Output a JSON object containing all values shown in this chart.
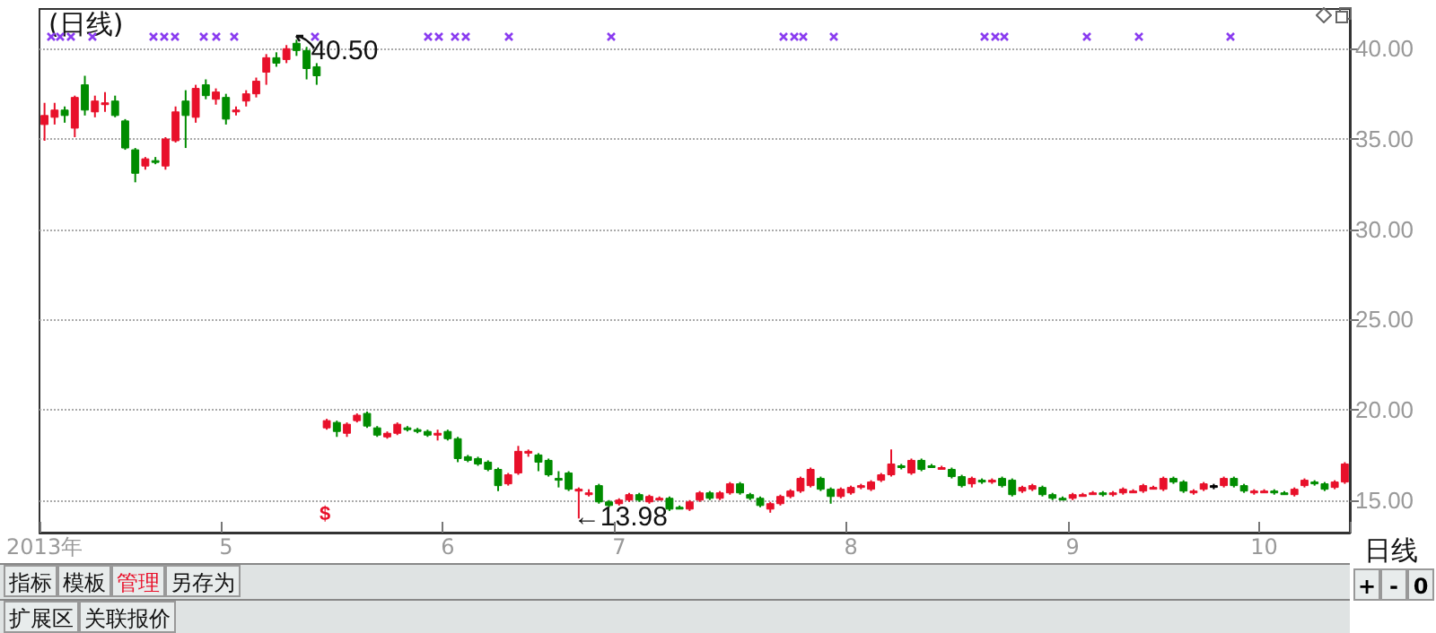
{
  "chart_data": {
    "type": "candlestick",
    "title": "(日线)",
    "categories": [
      "2013年",
      null,
      null,
      null,
      null,
      null,
      null,
      null,
      null,
      null,
      null,
      null,
      null,
      null,
      null,
      null,
      null,
      null,
      "5",
      null,
      null,
      null,
      null,
      null,
      null,
      null,
      null,
      null,
      null,
      null,
      null,
      null,
      null,
      null,
      null,
      null,
      null,
      null,
      null,
      null,
      "6",
      null,
      null,
      null,
      null,
      null,
      null,
      null,
      null,
      null,
      null,
      null,
      null,
      null,
      null,
      null,
      null,
      "7",
      null,
      null,
      null,
      null,
      null,
      null,
      null,
      null,
      null,
      null,
      null,
      null,
      null,
      null,
      null,
      null,
      null,
      null,
      null,
      null,
      null,
      null,
      "8",
      null,
      null,
      null,
      null,
      null,
      null,
      null,
      null,
      null,
      null,
      null,
      null,
      null,
      null,
      null,
      null,
      null,
      null,
      null,
      null,
      null,
      "9",
      null,
      null,
      null,
      null,
      null,
      null,
      null,
      null,
      null,
      null,
      null,
      null,
      null,
      null,
      null,
      null,
      null,
      null,
      "10",
      null,
      null,
      null,
      null,
      null,
      null,
      null,
      null
    ],
    "ohlc": [
      [
        35.8,
        37.0,
        34.9,
        36.3
      ],
      [
        36.2,
        37.0,
        35.8,
        36.6
      ],
      [
        36.6,
        36.8,
        35.9,
        36.3
      ],
      [
        35.6,
        37.4,
        35.1,
        37.3
      ],
      [
        38.0,
        38.5,
        36.3,
        36.6
      ],
      [
        36.5,
        37.4,
        36.2,
        37.1
      ],
      [
        37.0,
        37.6,
        36.5,
        37.0
      ],
      [
        37.1,
        37.4,
        36.2,
        36.3
      ],
      [
        36.0,
        36.1,
        34.4,
        34.5
      ],
      [
        34.4,
        34.5,
        32.6,
        33.1
      ],
      [
        33.5,
        34.0,
        33.3,
        33.9
      ],
      [
        33.8,
        34.0,
        33.6,
        33.8
      ],
      [
        33.5,
        35.1,
        33.3,
        35.0
      ],
      [
        34.9,
        36.8,
        34.8,
        36.5
      ],
      [
        37.1,
        37.7,
        34.5,
        36.3
      ],
      [
        36.2,
        38.0,
        35.9,
        37.8
      ],
      [
        38.0,
        38.3,
        37.2,
        37.4
      ],
      [
        37.2,
        37.8,
        36.9,
        37.6
      ],
      [
        37.3,
        37.5,
        35.8,
        36.1
      ],
      [
        36.5,
        36.8,
        36.3,
        36.6
      ],
      [
        37.1,
        37.7,
        36.8,
        37.5
      ],
      [
        37.5,
        38.4,
        37.3,
        38.2
      ],
      [
        38.7,
        39.7,
        38.0,
        39.5
      ],
      [
        39.5,
        39.8,
        39.0,
        39.2
      ],
      [
        39.4,
        40.2,
        39.2,
        40.0
      ],
      [
        40.3,
        40.5,
        39.6,
        39.9
      ],
      [
        39.9,
        40.1,
        38.3,
        38.9
      ],
      [
        39.0,
        39.2,
        38.0,
        38.5
      ],
      [
        19.0,
        19.5,
        18.9,
        19.4
      ],
      [
        19.3,
        19.4,
        18.5,
        18.8
      ],
      [
        18.7,
        19.3,
        18.5,
        19.2
      ],
      [
        19.4,
        19.8,
        19.3,
        19.7
      ],
      [
        19.8,
        19.9,
        19.0,
        19.1
      ],
      [
        19.0,
        19.1,
        18.5,
        18.6
      ],
      [
        18.5,
        18.8,
        18.4,
        18.7
      ],
      [
        18.7,
        19.3,
        18.6,
        19.2
      ],
      [
        19.0,
        19.1,
        18.8,
        19.0
      ],
      [
        18.9,
        19.0,
        18.7,
        18.9
      ],
      [
        18.8,
        18.9,
        18.5,
        18.6
      ],
      [
        18.6,
        18.9,
        18.3,
        18.7
      ],
      [
        18.8,
        18.9,
        18.3,
        18.4
      ],
      [
        18.4,
        18.5,
        17.1,
        17.3
      ],
      [
        17.4,
        17.5,
        17.1,
        17.2
      ],
      [
        17.3,
        17.4,
        16.9,
        17.0
      ],
      [
        17.1,
        17.2,
        16.6,
        16.7
      ],
      [
        16.7,
        16.8,
        15.5,
        15.8
      ],
      [
        15.9,
        16.5,
        15.8,
        16.4
      ],
      [
        16.5,
        18.0,
        16.4,
        17.7
      ],
      [
        17.6,
        17.8,
        17.4,
        17.7
      ],
      [
        17.5,
        17.6,
        16.6,
        17.1
      ],
      [
        17.2,
        17.3,
        16.3,
        16.4
      ],
      [
        16.2,
        16.6,
        15.7,
        16.2
      ],
      [
        16.5,
        16.6,
        15.5,
        15.6
      ],
      [
        15.5,
        15.7,
        13.98,
        15.6
      ],
      [
        15.3,
        15.6,
        15.2,
        15.4
      ],
      [
        15.8,
        15.9,
        14.8,
        14.9
      ],
      [
        14.9,
        15.0,
        14.6,
        14.7
      ],
      [
        14.8,
        15.1,
        14.7,
        15.0
      ],
      [
        15.0,
        15.4,
        14.9,
        15.3
      ],
      [
        15.3,
        15.4,
        14.9,
        15.0
      ],
      [
        14.9,
        15.3,
        14.8,
        15.2
      ],
      [
        15.1,
        15.2,
        15.0,
        15.1
      ],
      [
        15.1,
        15.2,
        14.4,
        14.5
      ],
      [
        14.6,
        14.7,
        14.5,
        14.6
      ],
      [
        14.5,
        15.0,
        14.4,
        14.9
      ],
      [
        15.0,
        15.5,
        14.9,
        15.4
      ],
      [
        15.4,
        15.5,
        15.0,
        15.1
      ],
      [
        15.1,
        15.5,
        15.0,
        15.4
      ],
      [
        15.4,
        16.0,
        15.3,
        15.9
      ],
      [
        15.9,
        16.0,
        15.3,
        15.4
      ],
      [
        15.3,
        15.4,
        15.0,
        15.1
      ],
      [
        15.1,
        15.2,
        14.6,
        14.7
      ],
      [
        14.5,
        14.9,
        14.3,
        14.8
      ],
      [
        14.8,
        15.3,
        14.7,
        15.2
      ],
      [
        15.2,
        15.6,
        15.1,
        15.5
      ],
      [
        15.5,
        16.3,
        15.4,
        16.2
      ],
      [
        15.8,
        16.8,
        15.7,
        16.7
      ],
      [
        16.2,
        16.3,
        15.5,
        15.6
      ],
      [
        15.6,
        15.7,
        14.8,
        15.2
      ],
      [
        15.2,
        15.7,
        15.1,
        15.6
      ],
      [
        15.4,
        15.8,
        15.3,
        15.7
      ],
      [
        15.8,
        15.9,
        15.6,
        15.8
      ],
      [
        15.6,
        16.1,
        15.5,
        16.0
      ],
      [
        16.1,
        16.5,
        16.0,
        16.4
      ],
      [
        16.4,
        17.8,
        16.3,
        17.0
      ],
      [
        16.9,
        17.0,
        16.7,
        16.8
      ],
      [
        16.5,
        17.3,
        16.4,
        17.2
      ],
      [
        17.2,
        17.3,
        16.6,
        16.7
      ],
      [
        16.9,
        17.0,
        16.8,
        16.9
      ],
      [
        16.8,
        16.9,
        16.7,
        16.8
      ],
      [
        16.7,
        16.8,
        16.2,
        16.3
      ],
      [
        16.3,
        16.4,
        15.7,
        15.8
      ],
      [
        15.9,
        16.3,
        15.7,
        16.2
      ],
      [
        16.1,
        16.2,
        15.9,
        16.0
      ],
      [
        16.0,
        16.2,
        15.9,
        16.1
      ],
      [
        16.2,
        16.3,
        15.7,
        15.8
      ],
      [
        16.1,
        16.2,
        15.2,
        15.3
      ],
      [
        15.5,
        15.8,
        15.4,
        15.7
      ],
      [
        15.6,
        15.9,
        15.5,
        15.8
      ],
      [
        15.7,
        15.8,
        15.2,
        15.3
      ],
      [
        15.3,
        15.4,
        15.0,
        15.1
      ],
      [
        15.1,
        15.2,
        15.0,
        15.1
      ],
      [
        15.1,
        15.4,
        15.0,
        15.3
      ],
      [
        15.3,
        15.4,
        15.2,
        15.3
      ],
      [
        15.4,
        15.5,
        15.3,
        15.4
      ],
      [
        15.4,
        15.5,
        15.2,
        15.3
      ],
      [
        15.3,
        15.5,
        15.2,
        15.4
      ],
      [
        15.4,
        15.7,
        15.3,
        15.6
      ],
      [
        15.5,
        15.6,
        15.4,
        15.5
      ],
      [
        15.5,
        15.9,
        15.4,
        15.8
      ],
      [
        15.7,
        15.8,
        15.6,
        15.7
      ],
      [
        15.6,
        16.3,
        15.5,
        16.2
      ],
      [
        16.2,
        16.3,
        15.9,
        16.0
      ],
      [
        16.0,
        16.1,
        15.4,
        15.5
      ],
      [
        15.4,
        15.6,
        15.3,
        15.5
      ],
      [
        15.6,
        16.0,
        15.5,
        15.9
      ],
      [
        15.8,
        15.9,
        15.6,
        15.8
      ],
      [
        15.8,
        16.3,
        15.7,
        16.2
      ],
      [
        16.2,
        16.3,
        15.7,
        15.8
      ],
      [
        15.8,
        15.9,
        15.4,
        15.5
      ],
      [
        15.4,
        15.6,
        15.3,
        15.5
      ],
      [
        15.5,
        15.6,
        15.4,
        15.5
      ],
      [
        15.5,
        15.6,
        15.3,
        15.4
      ],
      [
        15.4,
        15.5,
        15.3,
        15.3
      ],
      [
        15.3,
        15.7,
        15.2,
        15.6
      ],
      [
        15.8,
        16.2,
        15.7,
        16.1
      ],
      [
        16.0,
        16.1,
        15.8,
        15.9
      ],
      [
        15.9,
        16.0,
        15.5,
        15.6
      ],
      [
        15.7,
        16.1,
        15.6,
        16.0
      ],
      [
        16.0,
        17.1,
        15.9,
        17.0
      ]
    ],
    "colors": [
      "#e8102a",
      "#e8102a",
      "#008c00",
      "#e8102a",
      "#008c00",
      "#e8102a",
      "#e8102a",
      "#008c00",
      "#008c00",
      "#008c00",
      "#e8102a",
      "#008c00",
      "#e8102a",
      "#e8102a",
      "#008c00",
      "#e8102a",
      "#008c00",
      "#e8102a",
      "#008c00",
      "#e8102a",
      "#e8102a",
      "#e8102a",
      "#e8102a",
      "#008c00",
      "#e8102a",
      "#008c00",
      "#008c00",
      "#008c00",
      "#e8102a",
      "#008c00",
      "#e8102a",
      "#e8102a",
      "#008c00",
      "#008c00",
      "#e8102a",
      "#e8102a",
      "#008c00",
      "#008c00",
      "#008c00",
      "#e8102a",
      "#008c00",
      "#008c00",
      "#008c00",
      "#008c00",
      "#008c00",
      "#008c00",
      "#e8102a",
      "#e8102a",
      "#e8102a",
      "#008c00",
      "#008c00",
      "#008c00",
      "#008c00",
      "#e8102a",
      "#e8102a",
      "#008c00",
      "#008c00",
      "#e8102a",
      "#e8102a",
      "#008c00",
      "#e8102a",
      "#e8102a",
      "#008c00",
      "#008c00",
      "#e8102a",
      "#e8102a",
      "#008c00",
      "#e8102a",
      "#e8102a",
      "#008c00",
      "#008c00",
      "#008c00",
      "#e8102a",
      "#e8102a",
      "#e8102a",
      "#e8102a",
      "#e8102a",
      "#008c00",
      "#008c00",
      "#e8102a",
      "#e8102a",
      "#e8102a",
      "#e8102a",
      "#e8102a",
      "#e8102a",
      "#008c00",
      "#e8102a",
      "#008c00",
      "#008c00",
      "#e8102a",
      "#008c00",
      "#008c00",
      "#e8102a",
      "#008c00",
      "#e8102a",
      "#008c00",
      "#008c00",
      "#e8102a",
      "#e8102a",
      "#008c00",
      "#008c00",
      "#008c00",
      "#e8102a",
      "#e8102a",
      "#e8102a",
      "#008c00",
      "#e8102a",
      "#e8102a",
      "#e8102a",
      "#e8102a",
      "#e8102a",
      "#e8102a",
      "#008c00",
      "#008c00",
      "#e8102a",
      "#e8102a",
      "#000000",
      "#e8102a",
      "#008c00",
      "#008c00",
      "#e8102a",
      "#e8102a",
      "#008c00",
      "#008c00",
      "#e8102a",
      "#e8102a",
      "#008c00",
      "#008c00",
      "#e8102a",
      "#e8102a"
    ],
    "ylim": [
      13.2,
      42.2
    ],
    "yticks": [
      {
        "value": 15,
        "label": "15.00"
      },
      {
        "value": 20,
        "label": "20.00"
      },
      {
        "value": 25,
        "label": "25.00"
      },
      {
        "value": 30,
        "label": "30.00"
      },
      {
        "value": 35,
        "label": "35.00"
      },
      {
        "value": 40,
        "label": "40.00"
      }
    ],
    "grid": "y",
    "annotations": [
      "40.50",
      "←13.98",
      "$",
      "指标",
      "模板",
      "管理",
      "另存为",
      "扩展区",
      "关联报价",
      "日线",
      "+",
      "-",
      "0"
    ]
  }
}
